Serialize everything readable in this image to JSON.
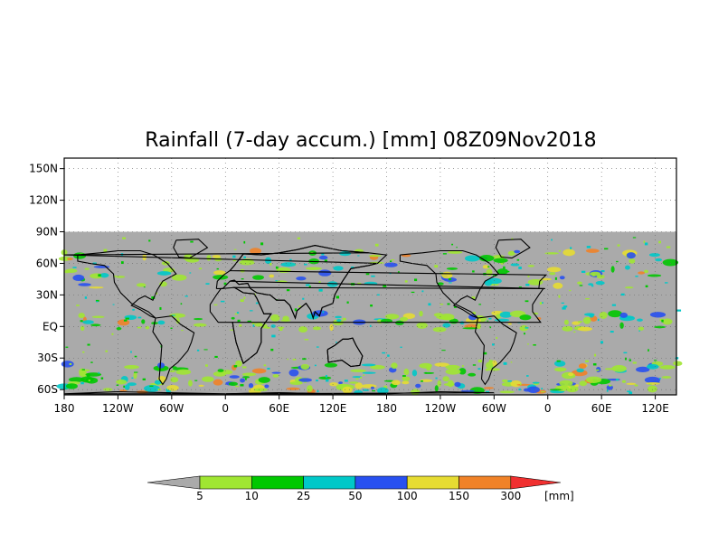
{
  "title": "Rainfall (7-day accum.) [mm] 08Z09Nov2018",
  "map": {
    "lon_range": [
      180,
      540
    ],
    "lat_range": [
      -65,
      160
    ],
    "data_lat_range": [
      -65,
      90
    ],
    "lat_ticks": [
      {
        "value": 150,
        "label": "150N"
      },
      {
        "value": 120,
        "label": "120N"
      },
      {
        "value": 90,
        "label": "90N"
      },
      {
        "value": 60,
        "label": "60N"
      },
      {
        "value": 30,
        "label": "30N"
      },
      {
        "value": 0,
        "label": "EQ"
      },
      {
        "value": -30,
        "label": "30S"
      },
      {
        "value": -60,
        "label": "60S"
      }
    ],
    "lon_ticks": [
      {
        "value": 180,
        "label": "180"
      },
      {
        "value": 240,
        "label": "120W"
      },
      {
        "value": 300,
        "label": "60W"
      },
      {
        "value": 360,
        "label": "0"
      },
      {
        "value": 420,
        "label": "60E"
      },
      {
        "value": 480,
        "label": "120E"
      },
      {
        "value": 540,
        "label": "180"
      },
      {
        "value": 600,
        "label": "120W"
      },
      {
        "value": 660,
        "label": "60W"
      },
      {
        "value": 720,
        "label": "0"
      },
      {
        "value": 780,
        "label": "60E"
      },
      {
        "value": 840,
        "label": "120E"
      }
    ],
    "background_color": "#aaaaaa",
    "grid": true
  },
  "colorbar": {
    "unit_label": "[mm]",
    "low_color": "#aaaaaa",
    "high_color": "#f03030",
    "levels": [
      {
        "label": "5",
        "color": "#a0e632"
      },
      {
        "label": "10",
        "color": "#00c800"
      },
      {
        "label": "25",
        "color": "#00c8c8"
      },
      {
        "label": "50",
        "color": "#2850f0"
      },
      {
        "label": "100",
        "color": "#e6dc32"
      },
      {
        "label": "150",
        "color": "#f08228"
      },
      {
        "label": "300",
        "color": ""
      }
    ]
  }
}
